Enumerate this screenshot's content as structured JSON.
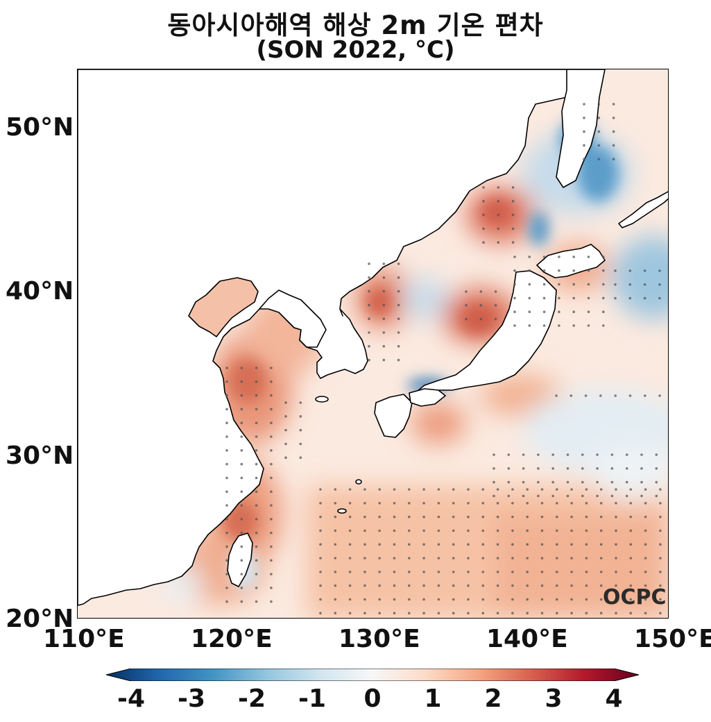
{
  "title": {
    "line1": "동아시아해역 해상 2m 기온 편차",
    "line2": "(SON 2022, °C)"
  },
  "axes": {
    "lat_ticks": [
      "50°N",
      "40°N",
      "30°N",
      "20°N"
    ],
    "lon_ticks": [
      "110°E",
      "120°E",
      "130°E",
      "140°E",
      "150°E"
    ],
    "lon_range": [
      110,
      150
    ],
    "lat_range": [
      20,
      53.5
    ]
  },
  "watermark": "OCPC",
  "colorbar": {
    "labels": [
      "-4",
      "-3",
      "-2",
      "-1",
      "0",
      "1",
      "2",
      "3",
      "4"
    ],
    "range": [
      -4,
      4
    ],
    "extend": "both",
    "colormap": [
      "#053061",
      "#2166ac",
      "#4393c3",
      "#92c5de",
      "#d1e5f0",
      "#f7f7f7",
      "#fddbc7",
      "#f4a582",
      "#d6604d",
      "#b2182b",
      "#67001f"
    ]
  },
  "colors": {
    "land": "#ffffff",
    "coastline": "#000000",
    "stipple": "#555555"
  }
}
